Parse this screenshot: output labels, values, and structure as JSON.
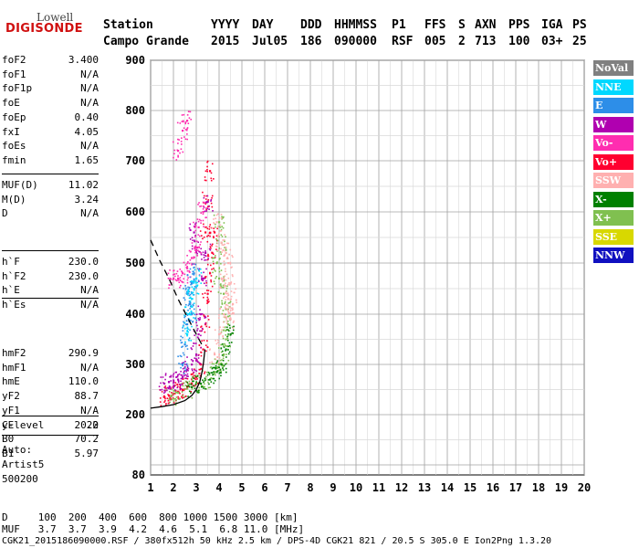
{
  "logo": {
    "top": "Lowell",
    "bottom": "DIGISONDE"
  },
  "header": {
    "row1": [
      {
        "text": "Station",
        "x": 113
      },
      {
        "text": "YYYY",
        "x": 231
      },
      {
        "text": "DAY",
        "x": 276
      },
      {
        "text": "DDD",
        "x": 329
      },
      {
        "text": "HHMMSS",
        "x": 366
      },
      {
        "text": "P1",
        "x": 429
      },
      {
        "text": "FFS",
        "x": 465
      },
      {
        "text": "S",
        "x": 502
      },
      {
        "text": "AXN",
        "x": 520
      },
      {
        "text": "PPS",
        "x": 557
      },
      {
        "text": "IGA",
        "x": 593
      },
      {
        "text": "PS",
        "x": 627
      }
    ],
    "row2": [
      {
        "text": "Campo Grande",
        "x": 113
      },
      {
        "text": "2015",
        "x": 231
      },
      {
        "text": "Jul05",
        "x": 276
      },
      {
        "text": "186",
        "x": 329
      },
      {
        "text": "090000",
        "x": 366
      },
      {
        "text": "RSF",
        "x": 429
      },
      {
        "text": "005",
        "x": 465
      },
      {
        "text": "2",
        "x": 502
      },
      {
        "text": "713",
        "x": 520
      },
      {
        "text": "100",
        "x": 557
      },
      {
        "text": "03+",
        "x": 593
      },
      {
        "text": "25",
        "x": 627
      }
    ]
  },
  "params": {
    "group1": [
      {
        "name": "foF2",
        "value": "3.400"
      },
      {
        "name": "foF1",
        "value": "N/A"
      },
      {
        "name": "foF1p",
        "value": "N/A"
      },
      {
        "name": "foE",
        "value": "N/A"
      },
      {
        "name": "foEp",
        "value": "0.40"
      },
      {
        "name": "fxI",
        "value": "4.05"
      },
      {
        "name": "foEs",
        "value": "N/A"
      },
      {
        "name": "fmin",
        "value": "1.65"
      }
    ],
    "group2": [
      {
        "name": "MUF(D)",
        "value": "11.02"
      },
      {
        "name": "M(D)",
        "value": "3.24"
      },
      {
        "name": "D",
        "value": "N/A"
      }
    ],
    "group3": [
      {
        "name": "h`F",
        "value": "230.0"
      },
      {
        "name": "h`F2",
        "value": "230.0"
      },
      {
        "name": "h`E",
        "value": "N/A"
      },
      {
        "name": "h`Es",
        "value": "N/A"
      }
    ],
    "group4": [
      {
        "name": "hmF2",
        "value": "290.9"
      },
      {
        "name": "hmF1",
        "value": "N/A"
      },
      {
        "name": "hmE",
        "value": "110.0"
      },
      {
        "name": "yF2",
        "value": "88.7"
      },
      {
        "name": "yF1",
        "value": "N/A"
      },
      {
        "name": "yE",
        "value": "20.0"
      },
      {
        "name": "B0",
        "value": "70.2"
      },
      {
        "name": "B1",
        "value": "5.97"
      }
    ],
    "group5": [
      {
        "name": "C-level",
        "value": "22"
      }
    ]
  },
  "autoscale": {
    "line1": "Auto:",
    "line2": "Artist5",
    "line3": "500200"
  },
  "legend": [
    {
      "label": "NoVal",
      "color": "#808080",
      "text": "#ffffff"
    },
    {
      "label": "NNE",
      "color": "#00d8ff",
      "text": "#ffffff"
    },
    {
      "label": "E",
      "color": "#2d8ee8",
      "text": "#ffffff"
    },
    {
      "label": "W",
      "color": "#b000b0",
      "text": "#ffffff"
    },
    {
      "label": "Vo-",
      "color": "#ff2db0",
      "text": "#ffffff"
    },
    {
      "label": "Vo+",
      "color": "#ff0030",
      "text": "#ffffff"
    },
    {
      "label": "SSW",
      "color": "#ffb0b0",
      "text": "#ffffff"
    },
    {
      "label": "X-",
      "color": "#008000",
      "text": "#ffffff"
    },
    {
      "label": "X+",
      "color": "#80c050",
      "text": "#ffffff"
    },
    {
      "label": "SSE",
      "color": "#d8d800",
      "text": "#ffffff"
    },
    {
      "label": "NNW",
      "color": "#1010c0",
      "text": "#ffffff"
    }
  ],
  "footer": {
    "dist_row": "D     100  200  400  600  800 1000 1500 3000 [km]",
    "muf_row": "MUF   3.7  3.7  3.9  4.2  4.6  5.1  6.8 11.0 [MHz]",
    "info_row": "CGK21_2015186090000.RSF / 380fx512h 50 kHz 2.5 km / DPS-4D CGK21 821 / 20.5 S 305.0 E Ion2Png 1.3.20"
  },
  "chart_data": {
    "type": "scatter",
    "xlabel": "",
    "ylabel": "",
    "xlim": [
      1,
      20
    ],
    "ylim": [
      80,
      900
    ],
    "x_ticks": [
      "1",
      "2",
      "3",
      "4",
      "5",
      "6",
      "7",
      "8",
      "9",
      "10",
      "11",
      "12",
      "13",
      "14",
      "15",
      "16",
      "17",
      "18",
      "19",
      "20"
    ],
    "y_ticks": [
      "80",
      "200",
      "300",
      "400",
      "500",
      "600",
      "700",
      "800",
      "900"
    ],
    "grid": true,
    "series": [
      {
        "name": "Vo+",
        "color": "#ff0030",
        "points": [
          [
            1.6,
            235
          ],
          [
            1.8,
            238
          ],
          [
            2.0,
            242
          ],
          [
            2.2,
            246
          ],
          [
            2.4,
            250
          ],
          [
            2.6,
            256
          ],
          [
            2.8,
            262
          ],
          [
            3.0,
            275
          ],
          [
            3.2,
            300
          ],
          [
            3.3,
            330
          ],
          [
            3.4,
            380
          ],
          [
            3.5,
            440
          ],
          [
            3.6,
            480
          ],
          [
            3.7,
            520
          ],
          [
            3.8,
            560
          ],
          [
            3.5,
            620
          ],
          [
            3.6,
            680
          ],
          [
            3.4,
            560
          ]
        ]
      },
      {
        "name": "X+",
        "color": "#80c050",
        "points": [
          [
            1.9,
            238
          ],
          [
            2.2,
            244
          ],
          [
            2.6,
            252
          ],
          [
            3.0,
            262
          ],
          [
            3.4,
            270
          ],
          [
            3.8,
            285
          ],
          [
            4.0,
            300
          ],
          [
            4.2,
            320
          ],
          [
            4.3,
            350
          ],
          [
            4.4,
            380
          ],
          [
            4.3,
            410
          ],
          [
            4.2,
            440
          ],
          [
            4.0,
            470
          ],
          [
            3.9,
            500
          ],
          [
            4.1,
            540
          ],
          [
            4.0,
            580
          ]
        ]
      },
      {
        "name": "W",
        "color": "#b000b0",
        "points": [
          [
            1.6,
            262
          ],
          [
            1.8,
            265
          ],
          [
            2.0,
            268
          ],
          [
            2.2,
            270
          ],
          [
            2.4,
            275
          ],
          [
            2.6,
            290
          ],
          [
            2.8,
            300
          ],
          [
            3.0,
            320
          ],
          [
            3.1,
            360
          ],
          [
            3.2,
            400
          ],
          [
            3.3,
            470
          ],
          [
            3.4,
            520
          ],
          [
            3.0,
            530
          ],
          [
            2.9,
            560
          ],
          [
            3.5,
            620
          ]
        ]
      },
      {
        "name": "SSW",
        "color": "#ffb0b0",
        "points": [
          [
            3.8,
            320
          ],
          [
            4.0,
            360
          ],
          [
            4.2,
            400
          ],
          [
            4.4,
            430
          ],
          [
            4.5,
            460
          ],
          [
            4.4,
            500
          ],
          [
            4.3,
            520
          ],
          [
            4.1,
            540
          ],
          [
            3.9,
            580
          ],
          [
            4.2,
            470
          ],
          [
            4.6,
            420
          ],
          [
            4.5,
            390
          ]
        ]
      },
      {
        "name": "Vo-",
        "color": "#ff2db0",
        "points": [
          [
            2.0,
            470
          ],
          [
            2.2,
            470
          ],
          [
            2.4,
            480
          ],
          [
            2.6,
            490
          ],
          [
            2.8,
            510
          ],
          [
            3.0,
            530
          ],
          [
            2.2,
            720
          ],
          [
            2.4,
            760
          ],
          [
            2.6,
            780
          ],
          [
            3.1,
            570
          ],
          [
            3.3,
            600
          ]
        ]
      },
      {
        "name": "E",
        "color": "#2d8ee8",
        "points": [
          [
            2.4,
            300
          ],
          [
            2.5,
            340
          ],
          [
            2.6,
            380
          ],
          [
            2.7,
            420
          ],
          [
            2.8,
            460
          ],
          [
            2.9,
            480
          ],
          [
            2.6,
            440
          ],
          [
            2.8,
            400
          ]
        ]
      },
      {
        "name": "NNE",
        "color": "#00d8ff",
        "points": [
          [
            2.6,
            360
          ],
          [
            2.7,
            400
          ],
          [
            2.8,
            430
          ],
          [
            2.9,
            450
          ],
          [
            3.0,
            470
          ]
        ]
      },
      {
        "name": "X-",
        "color": "#008000",
        "points": [
          [
            2.8,
            255
          ],
          [
            3.2,
            262
          ],
          [
            3.6,
            270
          ],
          [
            3.9,
            285
          ],
          [
            4.1,
            300
          ],
          [
            4.3,
            330
          ],
          [
            4.5,
            360
          ]
        ]
      }
    ],
    "curves": [
      {
        "name": "profile",
        "style": "solid",
        "points": [
          [
            1.0,
            213
          ],
          [
            1.5,
            216
          ],
          [
            2.0,
            220
          ],
          [
            2.5,
            228
          ],
          [
            2.8,
            238
          ],
          [
            3.0,
            250
          ],
          [
            3.15,
            265
          ],
          [
            3.25,
            285
          ],
          [
            3.32,
            305
          ],
          [
            3.38,
            330
          ]
        ]
      },
      {
        "name": "dashed",
        "style": "dashed",
        "points": [
          [
            1.0,
            545
          ],
          [
            1.4,
            505
          ],
          [
            1.8,
            470
          ],
          [
            2.2,
            430
          ],
          [
            2.6,
            395
          ],
          [
            3.0,
            360
          ],
          [
            3.3,
            335
          ]
        ]
      }
    ]
  }
}
